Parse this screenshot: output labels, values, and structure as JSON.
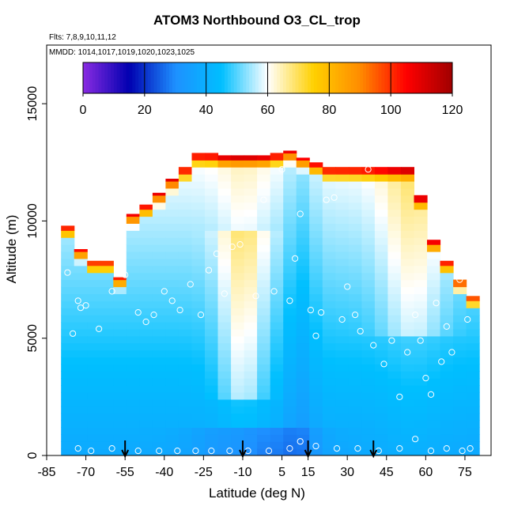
{
  "chart_data": {
    "type": "heatmap",
    "title": "ATOM3 Northbound O3_CL_trop",
    "flights_note": "Flts: 7,8,9,10,11,12",
    "mmdd_note": "MMDD: 1014,1017,1019,1020,1023,1025",
    "xlabel": "Latitude (deg N)",
    "ylabel": "Altitude (m)",
    "xlim": [
      -85,
      85
    ],
    "ylim": [
      0,
      17500
    ],
    "x_ticks": [
      -85,
      -70,
      -55,
      -40,
      -25,
      -10,
      5,
      15,
      30,
      45,
      60,
      75
    ],
    "y_ticks": [
      0,
      5000,
      10000,
      15000
    ],
    "colorbar": {
      "min": 0,
      "max": 120,
      "ticks": [
        0,
        20,
        40,
        60,
        80,
        100,
        120
      ],
      "colors": [
        "#8A2BE2",
        "#0000B0",
        "#1E90FF",
        "#00BFFF",
        "#FFFFFF",
        "#FFD000",
        "#FF8C00",
        "#FF0000",
        "#A00000"
      ]
    },
    "arrow_latitudes": [
      -55,
      -10,
      15,
      40
    ],
    "columns_lat": [
      -77,
      -72,
      -67,
      -62,
      -57,
      -52,
      -47,
      -42,
      -37,
      -32,
      -27,
      -22,
      -17,
      -12,
      -7,
      -2,
      3,
      8,
      13,
      18,
      23,
      28,
      33,
      38,
      43,
      48,
      53,
      58,
      63,
      68,
      73,
      78
    ],
    "column_top_alt": [
      9800,
      8800,
      8300,
      8300,
      7600,
      10300,
      10700,
      11200,
      11800,
      12300,
      12900,
      12900,
      12800,
      12800,
      12800,
      12800,
      12900,
      13000,
      12700,
      12500,
      12300,
      12300,
      12300,
      12300,
      12300,
      12300,
      12300,
      11100,
      9200,
      8300,
      7500,
      6800
    ],
    "sample_points": [
      [
        -77,
        7800
      ],
      [
        -75,
        5200
      ],
      [
        -73,
        6600
      ],
      [
        -72,
        6300
      ],
      [
        -70,
        6400
      ],
      [
        -65,
        5400
      ],
      [
        -60,
        7000
      ],
      [
        -55,
        7700
      ],
      [
        -50,
        6100
      ],
      [
        -47,
        5700
      ],
      [
        -44,
        6000
      ],
      [
        -40,
        7000
      ],
      [
        -37,
        6600
      ],
      [
        -34,
        6200
      ],
      [
        -30,
        7300
      ],
      [
        -26,
        6000
      ],
      [
        -23,
        7900
      ],
      [
        -20,
        8600
      ],
      [
        -17,
        6900
      ],
      [
        -14,
        8900
      ],
      [
        -11,
        9000
      ],
      [
        -8,
        10300
      ],
      [
        -5,
        6800
      ],
      [
        -2,
        10900
      ],
      [
        2,
        7000
      ],
      [
        5,
        12200
      ],
      [
        8,
        6600
      ],
      [
        10,
        8400
      ],
      [
        12,
        10300
      ],
      [
        14,
        12900
      ],
      [
        16,
        6200
      ],
      [
        18,
        5100
      ],
      [
        20,
        6100
      ],
      [
        22,
        10900
      ],
      [
        25,
        11000
      ],
      [
        28,
        5800
      ],
      [
        30,
        7200
      ],
      [
        33,
        6000
      ],
      [
        35,
        5300
      ],
      [
        38,
        12200
      ],
      [
        40,
        4700
      ],
      [
        44,
        3900
      ],
      [
        47,
        4900
      ],
      [
        50,
        2500
      ],
      [
        53,
        4400
      ],
      [
        56,
        6000
      ],
      [
        58,
        4900
      ],
      [
        60,
        3300
      ],
      [
        62,
        2600
      ],
      [
        64,
        6500
      ],
      [
        66,
        4000
      ],
      [
        68,
        5500
      ],
      [
        70,
        4400
      ],
      [
        73,
        7500
      ],
      [
        76,
        5800
      ],
      [
        77,
        300
      ],
      [
        -73,
        300
      ],
      [
        -68,
        200
      ],
      [
        -60,
        300
      ],
      [
        -50,
        200
      ],
      [
        -42,
        200
      ],
      [
        -35,
        200
      ],
      [
        -28,
        200
      ],
      [
        -22,
        200
      ],
      [
        -15,
        200
      ],
      [
        -8,
        200
      ],
      [
        0,
        200
      ],
      [
        8,
        300
      ],
      [
        12,
        600
      ],
      [
        18,
        400
      ],
      [
        26,
        300
      ],
      [
        34,
        300
      ],
      [
        42,
        200
      ],
      [
        50,
        300
      ],
      [
        56,
        700
      ],
      [
        62,
        200
      ],
      [
        68,
        300
      ],
      [
        74,
        200
      ]
    ]
  }
}
